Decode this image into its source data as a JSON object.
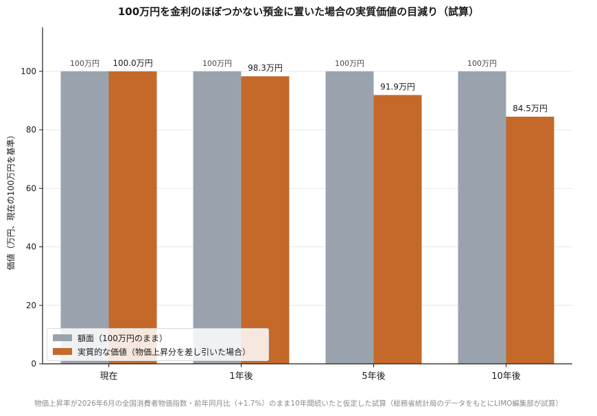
{
  "colors": {
    "face": "#9aa3ad",
    "real": "#c4692a",
    "axis": "#1a1a1a",
    "grid": "#e6e6e6"
  },
  "chart_data": {
    "type": "bar",
    "title": "100万円を金利のほぼつかない預金に置いた場合の実質価値の目減り（試算）",
    "ylabel": "価値（万円、現在の100万円を基準）",
    "xlabel": "",
    "categories": [
      "現在",
      "1年後",
      "5年後",
      "10年後"
    ],
    "ylim": [
      0,
      115
    ],
    "yticks": [
      0,
      20,
      40,
      60,
      80,
      100
    ],
    "grid": true,
    "legend_position": "bottom-left",
    "series": [
      {
        "name": "額面（100万円のまま）",
        "values": [
          100,
          100,
          100,
          100
        ],
        "data_labels": [
          "100万円",
          "100万円",
          "100万円",
          "100万円"
        ]
      },
      {
        "name": "実質的な価値（物価上昇分を差し引いた場合）",
        "values": [
          100.0,
          98.3,
          91.9,
          84.5
        ],
        "data_labels": [
          "100.0万円",
          "98.3万円",
          "91.9万円",
          "84.5万円"
        ]
      }
    ]
  },
  "footnote": "物価上昇率が2026年6月の全国消費者物価指数・前年同月比（+1.7%）のまま10年間続いたと仮定した試算（総務省統計局のデータをもとにLIMO編集部が試算）"
}
